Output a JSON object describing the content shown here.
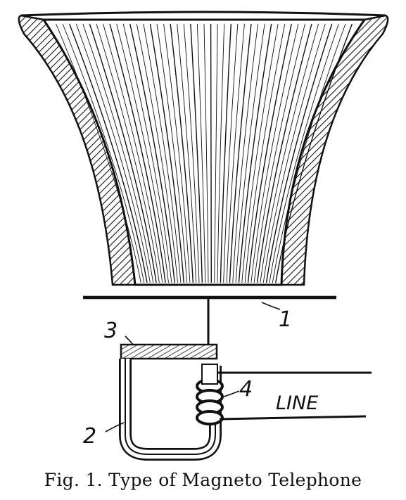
{
  "labels": {
    "diaphragm": "1",
    "magnet": "2",
    "pole_piece": "3",
    "coil": "4",
    "line": "LINE"
  },
  "caption": "Fig. 1.   Type of Magneto Telephone",
  "colors": {
    "ink": "#111111",
    "paper": "#ffffff"
  }
}
